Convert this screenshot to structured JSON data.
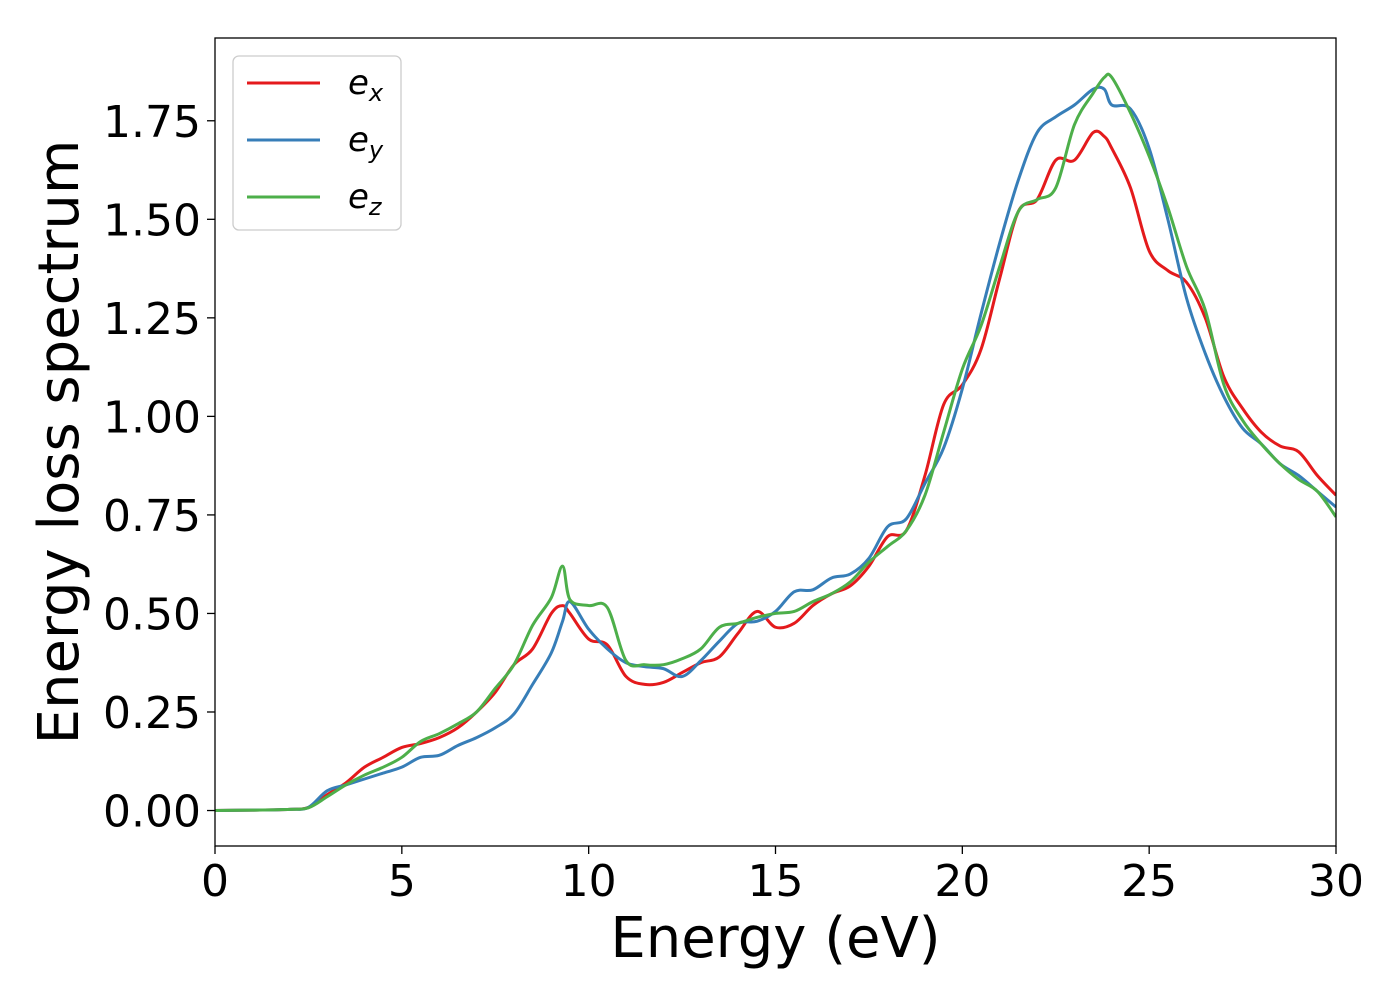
{
  "chart_data": {
    "type": "line",
    "title": "",
    "xlabel": "Energy (eV)",
    "ylabel": "Energy loss spectrum",
    "xlim": [
      0,
      30
    ],
    "ylim": [
      -0.09,
      1.96
    ],
    "xticks": [
      0,
      5,
      10,
      15,
      20,
      25,
      30
    ],
    "xtick_labels": [
      "0",
      "5",
      "10",
      "15",
      "20",
      "25",
      "30"
    ],
    "yticks": [
      0.0,
      0.25,
      0.5,
      0.75,
      1.0,
      1.25,
      1.5,
      1.75
    ],
    "ytick_labels": [
      "0.00",
      "0.25",
      "0.50",
      "0.75",
      "1.00",
      "1.25",
      "1.50",
      "1.75"
    ],
    "grid": false,
    "legend_position": "top-left",
    "x": [
      0,
      1,
      2,
      2.5,
      3,
      3.5,
      4,
      4.5,
      5,
      5.5,
      6,
      6.5,
      7,
      7.5,
      8,
      8.5,
      9,
      9.3,
      9.5,
      10,
      10.5,
      11,
      11.5,
      12,
      12.5,
      13,
      13.5,
      14,
      14.5,
      15,
      15.5,
      16,
      16.5,
      17,
      17.5,
      18,
      18.5,
      19,
      19.5,
      20,
      20.5,
      21,
      21.5,
      22,
      22.5,
      23,
      23.5,
      23.8,
      24,
      24.5,
      25,
      25.5,
      26,
      26.5,
      27,
      27.5,
      28,
      28.5,
      29,
      29.5,
      30
    ],
    "series": [
      {
        "name": "e_x",
        "label_base": "e",
        "label_sub": "x",
        "color": "#e41a1c",
        "values": [
          0,
          0.001,
          0.003,
          0.008,
          0.04,
          0.07,
          0.11,
          0.135,
          0.16,
          0.17,
          0.185,
          0.21,
          0.25,
          0.3,
          0.37,
          0.41,
          0.5,
          0.52,
          0.5,
          0.435,
          0.42,
          0.34,
          0.32,
          0.325,
          0.35,
          0.375,
          0.39,
          0.45,
          0.505,
          0.465,
          0.475,
          0.52,
          0.55,
          0.57,
          0.62,
          0.695,
          0.71,
          0.85,
          1.03,
          1.08,
          1.17,
          1.35,
          1.52,
          1.55,
          1.65,
          1.65,
          1.72,
          1.71,
          1.68,
          1.58,
          1.42,
          1.37,
          1.34,
          1.25,
          1.1,
          1.02,
          0.96,
          0.925,
          0.91,
          0.85,
          0.8
        ]
      },
      {
        "name": "e_y",
        "label_base": "e",
        "label_sub": "y",
        "color": "#377eb8",
        "values": [
          0,
          0.001,
          0.003,
          0.008,
          0.05,
          0.065,
          0.08,
          0.095,
          0.11,
          0.135,
          0.14,
          0.165,
          0.185,
          0.21,
          0.245,
          0.32,
          0.4,
          0.48,
          0.53,
          0.46,
          0.41,
          0.375,
          0.365,
          0.36,
          0.34,
          0.38,
          0.43,
          0.475,
          0.48,
          0.505,
          0.555,
          0.56,
          0.59,
          0.6,
          0.64,
          0.72,
          0.74,
          0.83,
          0.92,
          1.07,
          1.26,
          1.44,
          1.6,
          1.72,
          1.76,
          1.79,
          1.83,
          1.83,
          1.79,
          1.78,
          1.68,
          1.5,
          1.3,
          1.16,
          1.05,
          0.97,
          0.93,
          0.88,
          0.85,
          0.81,
          0.77
        ]
      },
      {
        "name": "e_z",
        "label_base": "e",
        "label_sub": "z",
        "color": "#4daf4a",
        "values": [
          0,
          0.001,
          0.003,
          0.007,
          0.035,
          0.065,
          0.09,
          0.11,
          0.135,
          0.175,
          0.195,
          0.22,
          0.25,
          0.31,
          0.37,
          0.47,
          0.54,
          0.62,
          0.535,
          0.52,
          0.515,
          0.38,
          0.37,
          0.37,
          0.385,
          0.41,
          0.465,
          0.475,
          0.49,
          0.5,
          0.505,
          0.53,
          0.55,
          0.58,
          0.63,
          0.67,
          0.71,
          0.8,
          0.96,
          1.12,
          1.23,
          1.38,
          1.52,
          1.55,
          1.58,
          1.74,
          1.82,
          1.86,
          1.86,
          1.77,
          1.66,
          1.53,
          1.38,
          1.27,
          1.08,
          0.99,
          0.93,
          0.88,
          0.84,
          0.81,
          0.745
        ]
      }
    ]
  }
}
